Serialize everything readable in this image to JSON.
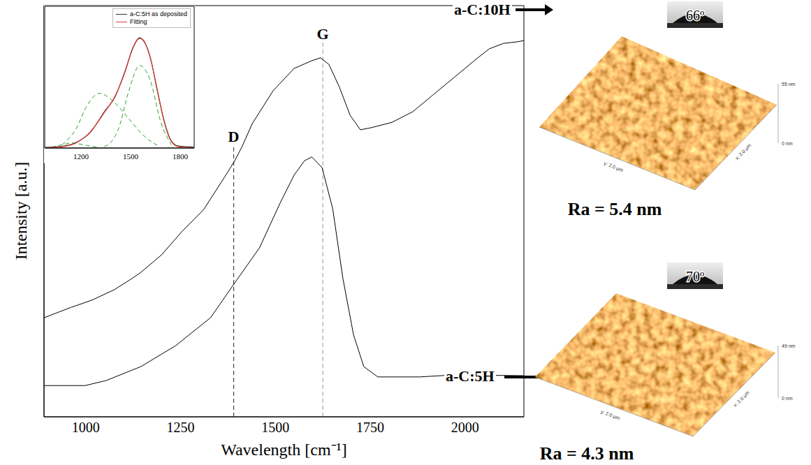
{
  "chart_data": [
    {
      "type": "line",
      "x_label": "Wavelength [cm⁻¹]",
      "y_label": "Intensity [a.u.]",
      "xlim": [
        890,
        2155
      ],
      "xticks": [
        1000,
        1250,
        1500,
        1750,
        2000
      ],
      "ylim": [
        0,
        100
      ],
      "tick_labels": "x",
      "grid": false,
      "series": [
        {
          "name": "a-C:10H",
          "color": "#000000",
          "x": [
            890,
            961,
            1017,
            1075,
            1118,
            1145,
            1200,
            1255,
            1311,
            1366,
            1393,
            1412,
            1439,
            1494,
            1549,
            1596,
            1619,
            1641,
            1669,
            1697,
            1724,
            1752,
            1807,
            1862,
            1917,
            1972,
            2028,
            2064,
            2101,
            2138,
            2155
          ],
          "values": [
            24.1,
            26.6,
            28.4,
            30.9,
            33.4,
            35.1,
            39.4,
            45.2,
            50.4,
            58.3,
            62.3,
            65.7,
            71.3,
            79.3,
            84.7,
            86.6,
            87.3,
            85.7,
            80.1,
            73.3,
            69.8,
            70.3,
            71.6,
            74.2,
            78.4,
            82.6,
            86.9,
            89.5,
            90.8,
            91.2,
            91.5
          ]
        },
        {
          "name": "a-C:5H",
          "color": "#000000",
          "x": [
            890,
            998,
            1053,
            1145,
            1237,
            1329,
            1393,
            1458,
            1513,
            1550,
            1577,
            1596,
            1623,
            1651,
            1678,
            1706,
            1733,
            1770,
            1880,
            1972,
            2155
          ],
          "values": [
            7.6,
            7.6,
            8.8,
            12.2,
            17.3,
            24.1,
            32.6,
            41.1,
            52.1,
            58.9,
            62.3,
            63.2,
            60.6,
            50.6,
            33.6,
            19.9,
            12.2,
            9.7,
            9.7,
            10.2,
            10.0
          ]
        }
      ],
      "annotations": [
        {
          "label": "D",
          "x": 1390,
          "y": 66,
          "color": "#444444",
          "line_style": "dashed"
        },
        {
          "label": "G",
          "x": 1625,
          "y": 91,
          "color": "#aaaaaa",
          "line_style": "dashed"
        }
      ]
    },
    {
      "type": "line",
      "xlim": [
        980,
        1885
      ],
      "xticks": [
        1200,
        1500,
        1800
      ],
      "ylim": [
        0,
        100
      ],
      "tick_labels": "x",
      "legend": "upper right",
      "series": [
        {
          "name": "a-C:5H as deposited",
          "color": "#333333",
          "x": [
            980,
            1085,
            1170,
            1256,
            1341,
            1405,
            1469,
            1512,
            1555,
            1576,
            1619,
            1662,
            1704,
            1747,
            1790,
            1885
          ],
          "values": [
            0.5,
            1.2,
            3.9,
            11.0,
            25.6,
            36.0,
            55.1,
            70.0,
            77.8,
            76.0,
            64.1,
            40.2,
            18.8,
            4.9,
            1.4,
            0.6
          ]
        },
        {
          "name": "Fitting",
          "color": "#e03c32",
          "x": [
            980,
            1085,
            1170,
            1256,
            1341,
            1405,
            1469,
            1512,
            1555,
            1576,
            1619,
            1662,
            1704,
            1747,
            1790,
            1885
          ],
          "values": [
            0,
            0.9,
            3.6,
            11.4,
            25,
            36.4,
            54.5,
            70.5,
            77.3,
            76.4,
            63.6,
            40.9,
            18.2,
            4.5,
            0.9,
            0
          ]
        }
      ],
      "components": [
        {
          "color": "#2ca02c",
          "line_style": "dashed",
          "x": [
            1341,
            1384,
            1427,
            1491,
            1555,
            1619,
            1683,
            1747
          ],
          "values": [
            1,
            4.5,
            13.6,
            40.9,
            58.2,
            47.7,
            18.2,
            2.3
          ]
        },
        {
          "color": "#2ca02c",
          "line_style": "dashed",
          "x": [
            1085,
            1170,
            1234,
            1311,
            1405,
            1491,
            1576,
            1662
          ],
          "values": [
            2.3,
            13.6,
            29.5,
            38.6,
            31.8,
            20.5,
            9.1,
            1.8
          ]
        },
        {
          "color": "#2ca02c",
          "line_style": "dashed",
          "x": [
            1021,
            1085,
            1149,
            1213,
            1298
          ],
          "values": [
            0.5,
            2.3,
            3.6,
            2.3,
            0.5
          ]
        }
      ]
    }
  ],
  "images": [
    {
      "sample": "a-C:10H",
      "contact_angle": "66º",
      "roughness": "Ra = 5.4 nm",
      "z_max": "55 nm",
      "z_min": "0 nm",
      "x_size": "x: 2.0 μm",
      "y_size": "y: 2.0 μm"
    },
    {
      "sample": "a-C:5H",
      "contact_angle": "70º",
      "roughness": "Ra = 4.3 nm",
      "z_max": "49 nm",
      "z_min": "0 nm",
      "x_size": "x: 2.0 μm",
      "y_size": "y: 2.0 μm"
    }
  ]
}
